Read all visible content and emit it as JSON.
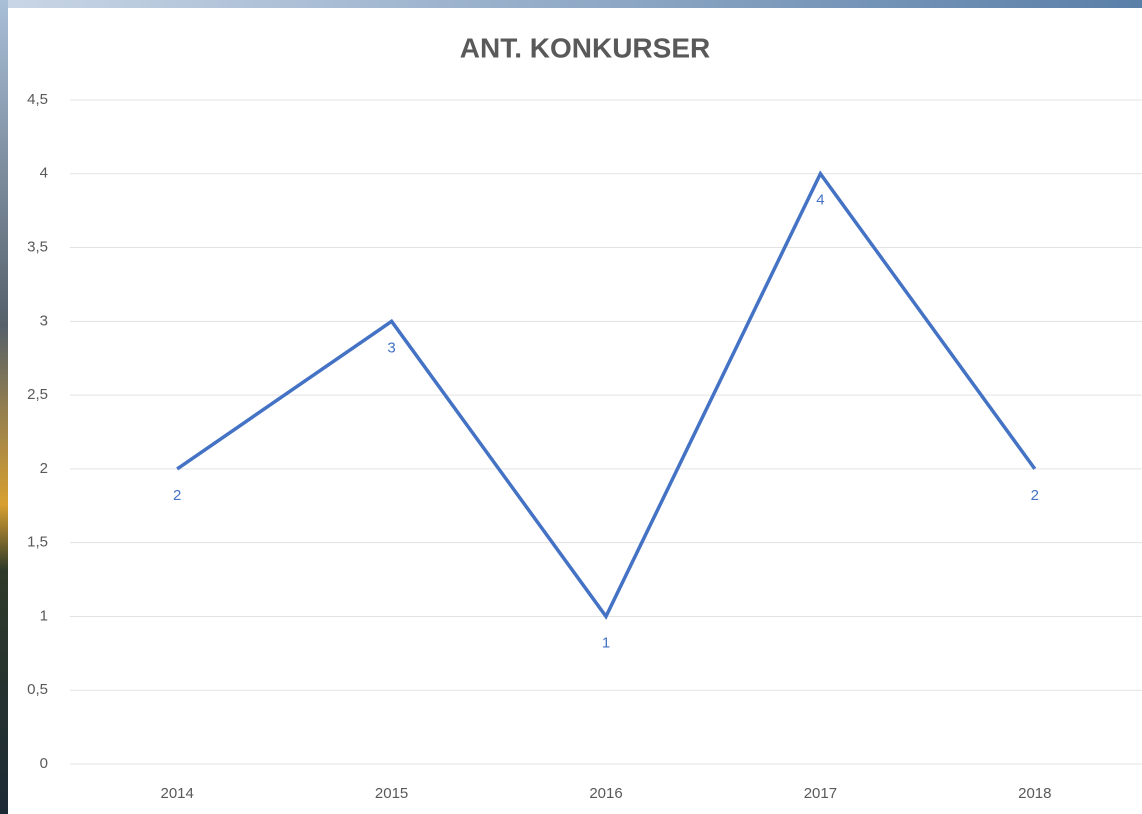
{
  "chart_data": {
    "type": "line",
    "title": "ANT. KONKURSER",
    "categories": [
      "2014",
      "2015",
      "2016",
      "2017",
      "2018"
    ],
    "values": [
      2,
      3,
      1,
      4,
      2
    ],
    "color": "#4472c4",
    "ylim": [
      0,
      4.5
    ],
    "yticks": [
      0,
      {
        "value": 0.5,
        "label": "0,5"
      },
      1,
      {
        "value": 1.5,
        "label": "1,5"
      },
      2,
      {
        "value": 2.5,
        "label": "2,5"
      },
      3,
      {
        "value": 3.5,
        "label": "3,5"
      },
      4,
      {
        "value": 4.5,
        "label": "4,5"
      }
    ],
    "grid": true,
    "data_labels": true
  }
}
